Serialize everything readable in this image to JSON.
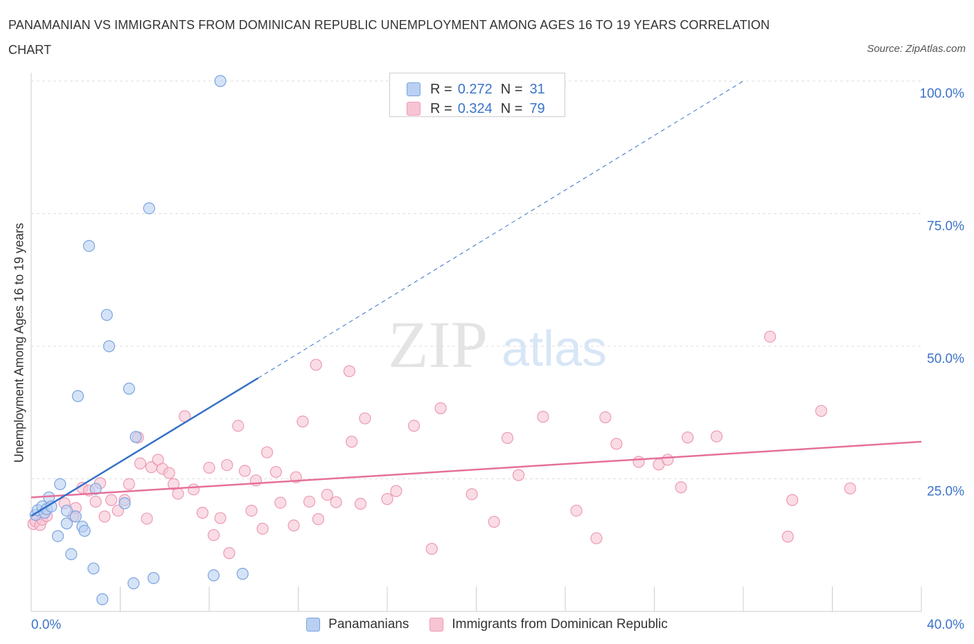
{
  "title": "PANAMANIAN VS IMMIGRANTS FROM DOMINICAN REPUBLIC UNEMPLOYMENT AMONG AGES 16 TO 19 YEARS CORRELATION CHART",
  "source": "Source: ZipAtlas.com",
  "watermark": {
    "zip": "ZIP",
    "atlas": "atlas"
  },
  "legend_top": {
    "rows": [
      {
        "r_label": "R =",
        "r_value": "0.272",
        "n_label": "N =",
        "n_value": "31"
      },
      {
        "r_label": "R =",
        "r_value": "0.324",
        "n_label": "N =",
        "n_value": "79"
      }
    ]
  },
  "colors": {
    "blue_fill": "#b9d0f2",
    "blue_stroke": "#7aa3e0",
    "blue_line": "#3470c8",
    "pink_fill": "#f7c4d4",
    "pink_stroke": "#ec9ab3",
    "pink_line": "#e5709a",
    "tick_label": "#3b73c8",
    "grid": "#dddddd"
  },
  "chart_data": {
    "type": "scatter",
    "title": "PANAMANIAN VS IMMIGRANTS FROM DOMINICAN REPUBLIC UNEMPLOYMENT AMONG AGES 16 TO 19 YEARS CORRELATION CHART",
    "xlabel": "",
    "ylabel": "Unemployment Among Ages 16 to 19 years",
    "xlim": [
      0,
      40
    ],
    "ylim": [
      0,
      100
    ],
    "x_tick_labels": [
      {
        "x": 0,
        "label": "0.0%"
      },
      {
        "x": 40,
        "label": "40.0%"
      }
    ],
    "y_tick_labels": [
      {
        "y": 25,
        "label": "25.0%"
      },
      {
        "y": 50,
        "label": "50.0%"
      },
      {
        "y": 75,
        "label": "75.0%"
      },
      {
        "y": 100,
        "label": "100.0%"
      }
    ],
    "grid": true,
    "series": [
      {
        "name": "Panamanians",
        "color": "blue",
        "points": [
          [
            0.2,
            18.2
          ],
          [
            0.3,
            19.1
          ],
          [
            0.5,
            19.8
          ],
          [
            0.6,
            18.6
          ],
          [
            0.7,
            19.3
          ],
          [
            0.8,
            21.5
          ],
          [
            0.9,
            19.8
          ],
          [
            1.2,
            14.2
          ],
          [
            1.3,
            24.0
          ],
          [
            1.6,
            19.0
          ],
          [
            1.6,
            16.6
          ],
          [
            1.8,
            10.8
          ],
          [
            2.0,
            17.9
          ],
          [
            2.1,
            40.6
          ],
          [
            2.3,
            16.0
          ],
          [
            2.4,
            15.2
          ],
          [
            2.6,
            68.9
          ],
          [
            2.8,
            8.1
          ],
          [
            2.9,
            23.1
          ],
          [
            3.2,
            2.3
          ],
          [
            3.4,
            55.9
          ],
          [
            3.5,
            50.0
          ],
          [
            4.2,
            20.4
          ],
          [
            4.4,
            42.0
          ],
          [
            4.6,
            5.3
          ],
          [
            4.7,
            32.9
          ],
          [
            5.3,
            76.0
          ],
          [
            5.5,
            6.3
          ],
          [
            8.2,
            6.8
          ],
          [
            8.5,
            100.0
          ],
          [
            9.5,
            7.1
          ]
        ],
        "trend_solid": [
          [
            0.0,
            18.0
          ],
          [
            10.2,
            44.0
          ]
        ],
        "trend_dashed": [
          [
            10.2,
            44.0
          ],
          [
            32.0,
            100.0
          ]
        ]
      },
      {
        "name": "Immigrants from Dominican Republic",
        "color": "pink",
        "points": [
          [
            0.1,
            16.5
          ],
          [
            0.2,
            17.0
          ],
          [
            0.4,
            16.3
          ],
          [
            0.5,
            17.3
          ],
          [
            0.7,
            18.0
          ],
          [
            1.5,
            20.4
          ],
          [
            1.9,
            18.0
          ],
          [
            2.0,
            19.5
          ],
          [
            2.3,
            23.3
          ],
          [
            2.6,
            22.8
          ],
          [
            2.9,
            20.7
          ],
          [
            3.1,
            24.2
          ],
          [
            3.3,
            17.9
          ],
          [
            3.6,
            21.0
          ],
          [
            3.9,
            19.0
          ],
          [
            4.2,
            21.0
          ],
          [
            4.4,
            24.0
          ],
          [
            4.8,
            32.8
          ],
          [
            4.9,
            27.9
          ],
          [
            5.2,
            17.5
          ],
          [
            5.4,
            27.2
          ],
          [
            5.7,
            28.6
          ],
          [
            5.9,
            26.9
          ],
          [
            6.2,
            26.1
          ],
          [
            6.4,
            24.0
          ],
          [
            6.6,
            22.2
          ],
          [
            6.9,
            36.8
          ],
          [
            7.3,
            23.0
          ],
          [
            7.7,
            18.6
          ],
          [
            8.0,
            27.1
          ],
          [
            8.2,
            14.4
          ],
          [
            8.5,
            17.6
          ],
          [
            8.8,
            27.6
          ],
          [
            8.9,
            11.0
          ],
          [
            9.3,
            35.0
          ],
          [
            9.6,
            26.5
          ],
          [
            9.9,
            19.0
          ],
          [
            10.1,
            24.7
          ],
          [
            10.4,
            15.6
          ],
          [
            10.6,
            30.0
          ],
          [
            11.0,
            26.3
          ],
          [
            11.2,
            20.5
          ],
          [
            11.8,
            16.2
          ],
          [
            11.9,
            25.3
          ],
          [
            12.2,
            35.8
          ],
          [
            12.5,
            20.7
          ],
          [
            12.8,
            46.5
          ],
          [
            12.9,
            17.4
          ],
          [
            13.3,
            22.0
          ],
          [
            13.7,
            20.6
          ],
          [
            14.3,
            45.3
          ],
          [
            14.4,
            32.0
          ],
          [
            14.8,
            20.3
          ],
          [
            15.0,
            36.4
          ],
          [
            16.0,
            21.2
          ],
          [
            16.4,
            22.7
          ],
          [
            17.2,
            35.0
          ],
          [
            18.0,
            11.8
          ],
          [
            18.4,
            38.3
          ],
          [
            19.8,
            22.1
          ],
          [
            20.8,
            16.9
          ],
          [
            21.4,
            32.7
          ],
          [
            21.9,
            25.7
          ],
          [
            23.0,
            36.7
          ],
          [
            24.5,
            19.0
          ],
          [
            25.4,
            13.8
          ],
          [
            25.8,
            36.6
          ],
          [
            26.3,
            31.6
          ],
          [
            27.3,
            28.2
          ],
          [
            28.2,
            27.7
          ],
          [
            28.6,
            28.6
          ],
          [
            29.2,
            23.4
          ],
          [
            29.5,
            32.8
          ],
          [
            30.8,
            33.0
          ],
          [
            33.2,
            51.8
          ],
          [
            34.0,
            14.1
          ],
          [
            34.2,
            21.0
          ],
          [
            35.5,
            37.8
          ],
          [
            36.8,
            23.2
          ]
        ],
        "trend_solid": [
          [
            0.0,
            21.5
          ],
          [
            40.0,
            32.0
          ]
        ]
      }
    ]
  },
  "legend_bottom": {
    "items": [
      {
        "label": "Panamanians",
        "color": "blue"
      },
      {
        "label": "Immigrants from Dominican Republic",
        "color": "pink"
      }
    ]
  }
}
